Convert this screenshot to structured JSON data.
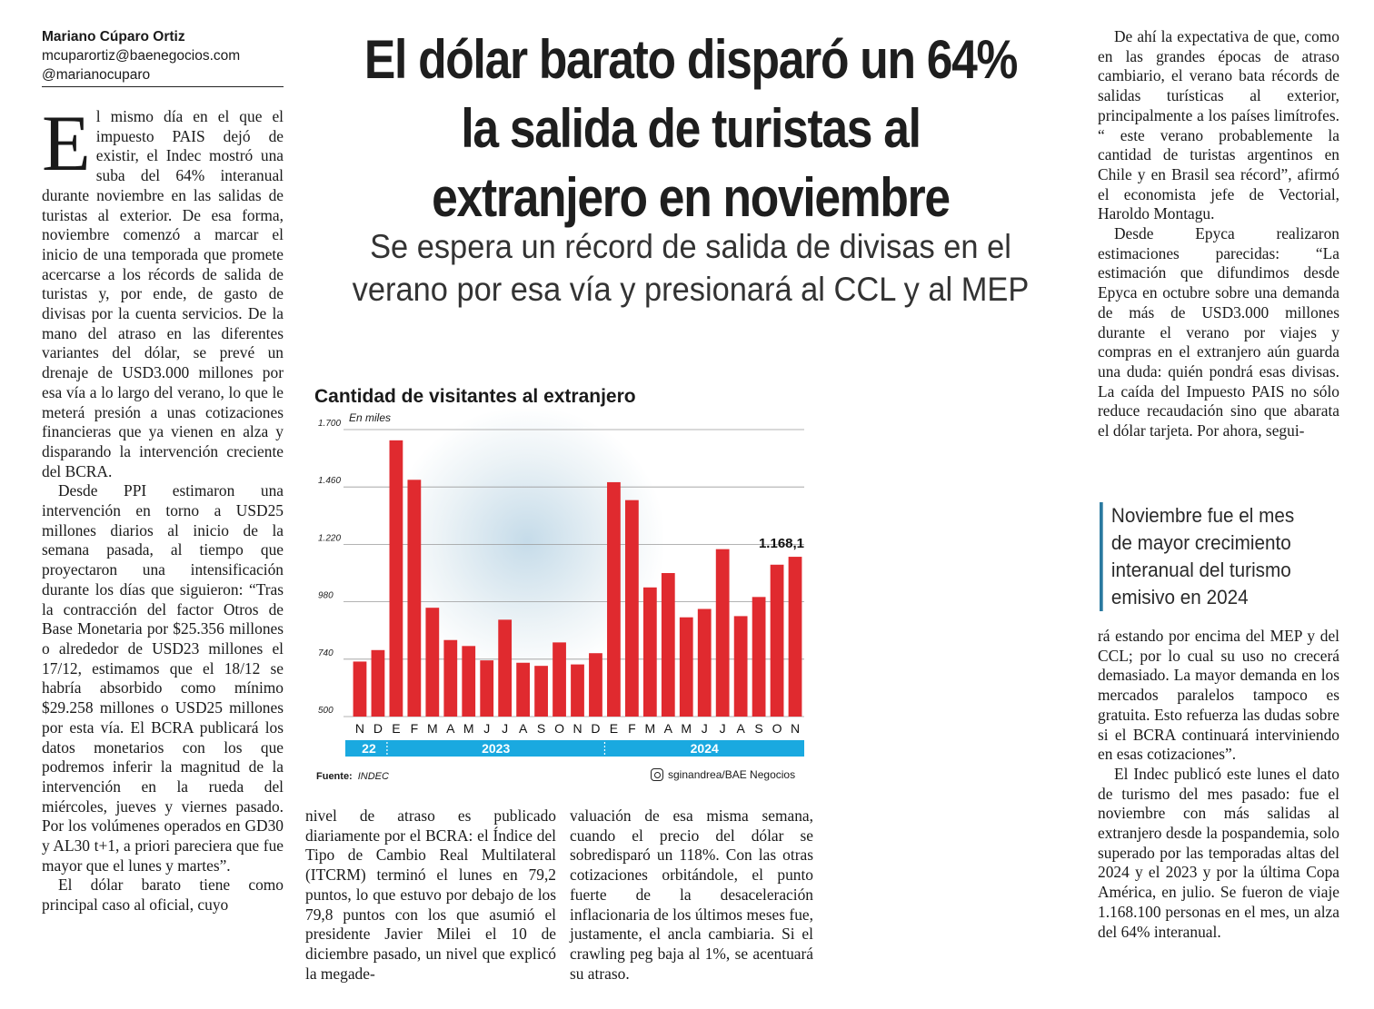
{
  "byline": {
    "author": "Mariano Cúparo Ortiz",
    "email": "mcuparortiz@baenegocios.com",
    "handle": "@marianocuparo"
  },
  "headline": "El dólar barato disparó un 64% la salida de turistas al extranjero en noviembre",
  "subhead": "Se espera un récord de salida de divisas en el verano por esa vía y presionará al CCL y al MEP",
  "col1": {
    "dropcap": "E",
    "p1": "l mismo día en el que el impuesto PAIS dejó de existir, el Indec mostró una suba del 64% interanual durante noviembre en las salidas de turistas al exterior. De esa forma, noviembre comenzó a marcar el inicio de una temporada que promete acercarse a los récords de salida de turistas y, por ende, de gasto de divisas por la cuenta servicios. De la mano del atraso en las diferentes variantes del dólar, se prevé un drenaje de USD3.000 millones por esa vía a lo largo del verano, lo que le meterá presión a unas cotizaciones financieras que ya vienen en alza y disparando la intervención creciente del BCRA.",
    "p2": "Desde PPI estimaron una intervención en torno a USD25 millones diarios al inicio de la semana pasada, al tiempo que proyectaron una intensificación durante los días que siguieron: “Tras la contracción del factor Otros de Base Monetaria por $25.356 millones o alrededor de USD23 millones el 17/12, estimamos que el 18/12 se habría absorbido como mínimo $29.258 millones o USD25 millones por esta vía. El BCRA publicará los datos monetarios con los que podremos inferir la magnitud de la intervención en la rueda del miércoles, jueves y viernes pasado. Por los volúmenes operados en GD30 y AL30 t+1, a priori pareciera que fue mayor que el lunes y martes”.",
    "p3": "El dólar barato tiene como principal caso al oficial, cuyo"
  },
  "col2": "nivel de atraso es publicado diariamente por el BCRA: el Índice del Tipo de Cambio Real Multilateral (ITCRM) terminó el lunes en 79,2 puntos, lo que estuvo por debajo de los 79,8 puntos con los que asumió el presidente Javier Milei el 10 de diciembre pasado, un nivel que explicó la megade-",
  "col3": "valuación de esa misma semana, cuando el precio del dólar se sobredisparó un 118%. Con las otras cotizaciones orbitándole, el punto fuerte de la desaceleración inflacionaria de los últimos meses fue, justamente, el ancla cambiaria. Si el crawling peg baja al 1%, se acentuará su atraso.",
  "col4": {
    "p1": "De ahí la expectativa de que, como en las grandes épocas de atraso cambiario, el verano bata récords de salidas turísticas al exterior, principalmente a los países limítrofes. “ este verano probablemente la cantidad de turistas argentinos en Chile y en Brasil sea récord”, afirmó el economista jefe de Vectorial, Haroldo Montagu.",
    "p2": "Desde Epyca realizaron estimaciones parecidas: “La estimación que difundimos desde Epyca en octubre sobre una demanda de más de USD3.000 millones durante el verano por viajes y compras en el extranjero aún guarda una duda: quién pondrá esas divisas. La caída del Impuesto PAIS no sólo reduce recaudación sino que abarata el dólar tarjeta. Por ahora, segui-",
    "p3": "rá estando por encima del MEP y del CCL; por lo cual su uso no crecerá demasiado. La mayor demanda en los mercados paralelos tampoco es gratuita. Esto refuerza las dudas sobre si el BCRA continuará interviniendo en esas cotizaciones”.",
    "p4": "El Indec publicó este lunes el dato de turismo del mes pasado: fue el noviembre con más salidas al extranjero desde la pospandemia, solo superado por las temporadas altas del 2024 y el 2023 y por la última Copa América, en julio. Se fueron de viaje 1.168.100 personas en el mes, un alza del 64% interanual."
  },
  "pullquote": [
    "Noviembre fue el mes",
    "de mayor crecimiento",
    "interanual del turismo",
    "emisivo en 2024"
  ],
  "chart_data": {
    "type": "bar",
    "title": "Cantidad de visitantes al extranjero",
    "unit_label": "En miles",
    "categories": [
      "N",
      "D",
      "E",
      "F",
      "M",
      "A",
      "M",
      "J",
      "J",
      "A",
      "S",
      "O",
      "N",
      "D",
      "E",
      "F",
      "M",
      "A",
      "M",
      "J",
      "J",
      "A",
      "S",
      "O",
      "N"
    ],
    "values": [
      730,
      778,
      1655,
      1490,
      955,
      820,
      795,
      735,
      905,
      725,
      712,
      810,
      718,
      765,
      1480,
      1405,
      1040,
      1100,
      915,
      950,
      1200,
      920,
      1000,
      1135,
      1168.1
    ],
    "yticks": [
      "1.700",
      "1.460",
      "1.220",
      "980",
      "740",
      "500"
    ],
    "ylim": [
      500,
      1700
    ],
    "highlight_label": "1.168,1",
    "year_bands": [
      {
        "label": "22",
        "from": 0,
        "to": 1
      },
      {
        "label": "2023",
        "from": 2,
        "to": 13
      },
      {
        "label": "2024",
        "from": 14,
        "to": 24
      }
    ],
    "bar_color": "#e02a2f",
    "band_color": "#1aa9e0",
    "source_label": "Fuente:",
    "source": "INDEC",
    "credit": "sginandrea/BAE Negocios",
    "credit_icon": "instagram-icon"
  }
}
